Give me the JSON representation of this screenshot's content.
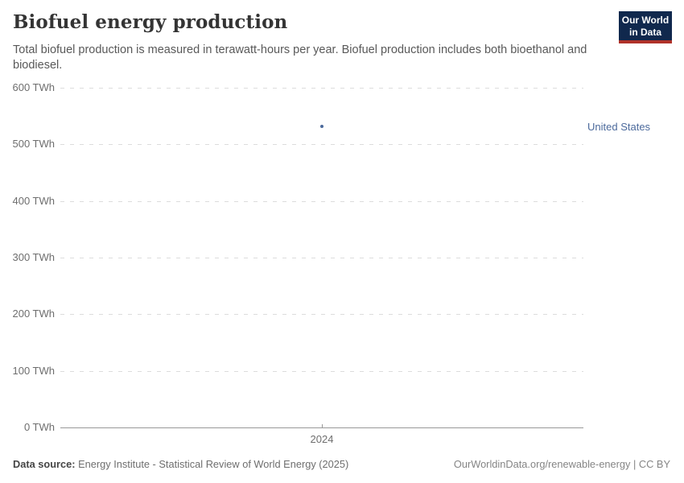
{
  "header": {
    "title": "Biofuel energy production",
    "subtitle": "Total biofuel production is measured in terawatt-hours per year. Biofuel production includes both bioethanol and biodiesel.",
    "logo": {
      "line1": "Our World",
      "line2": "in Data",
      "bg_color": "#10284d",
      "stripe_color": "#b0322a"
    }
  },
  "chart_data": {
    "type": "scatter",
    "title": "Biofuel energy production",
    "xlabel": "",
    "ylabel": "",
    "x_ticks": [
      "2024"
    ],
    "y_ticks": [
      0,
      100,
      200,
      300,
      400,
      500,
      600
    ],
    "y_tick_suffix": " TWh",
    "ylim": [
      0,
      600
    ],
    "grid": "horizontal-dashed",
    "legend_position": "right-of-point",
    "series": [
      {
        "name": "United States",
        "color": "#4c6a9c",
        "x": [
          "2024"
        ],
        "values": [
          532
        ]
      }
    ]
  },
  "footer": {
    "source_label": "Data source:",
    "source_text": " Energy Institute - Statistical Review of World Energy (2025)",
    "credit": "OurWorldinData.org/renewable-energy | CC BY"
  },
  "colors": {
    "accent_blue": "#4c6a9c",
    "gridline": "#dcdcdc",
    "axis": "#999999",
    "title_text": "#343434",
    "subtitle_text": "#595959",
    "tick_text": "#6e6e6e"
  }
}
